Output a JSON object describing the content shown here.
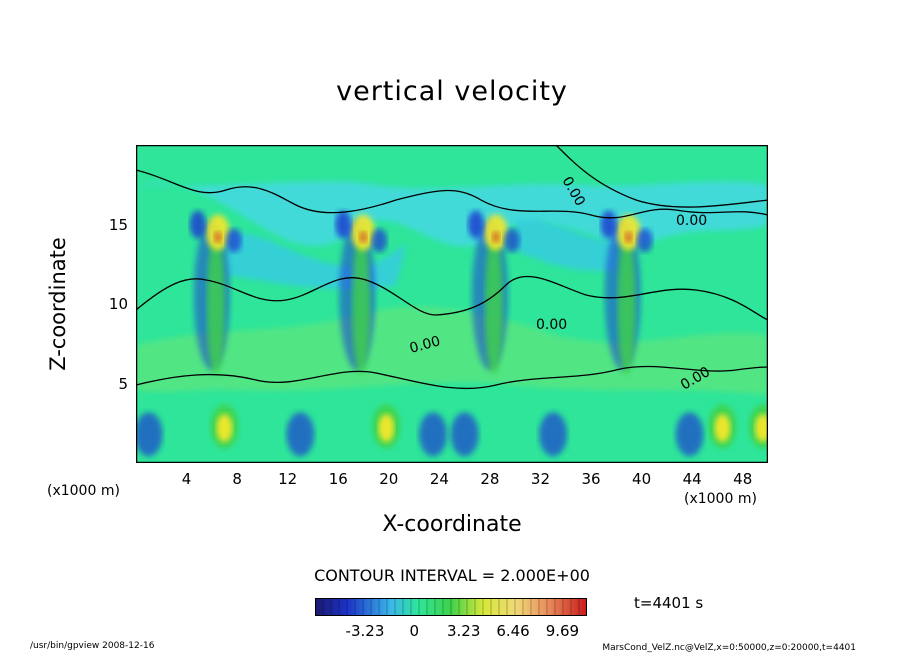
{
  "chart_data": {
    "type": "heatmap",
    "title": "vertical velocity",
    "xlabel": "X-coordinate",
    "ylabel": "Z-coordinate",
    "x_unit": "(x1000 m)",
    "z_unit": "(x1000 m)",
    "xlim": [
      0,
      50
    ],
    "ylim": [
      0,
      20
    ],
    "x_ticks": [
      "4",
      "8",
      "12",
      "16",
      "20",
      "24",
      "28",
      "32",
      "36",
      "40",
      "44",
      "48"
    ],
    "y_ticks": [
      "5",
      "10",
      "15"
    ],
    "contour_labels": [
      "0.00",
      "0.00",
      "0.00",
      "0.00",
      "0.00"
    ],
    "contour_interval": "CONTOUR INTERVAL = 2.000E+00",
    "colorbar_ticks": [
      "-3.23",
      "0",
      "3.23",
      "6.46",
      "9.69"
    ],
    "colorbar_range": [
      -6.5,
      11.3
    ],
    "time_label": "t=4401 s",
    "updraft_centers_x": [
      6,
      17.5,
      28,
      38.5
    ],
    "colors": {
      "background_field": "#2ee59a",
      "upper_band": "#39d9e0",
      "updraft": "#f4e82a",
      "downdraft": "#1a3fd0"
    }
  },
  "footer": {
    "left": "/usr/bin/gpview   2008-12-16",
    "right": "MarsCond_VelZ.nc@VelZ,x=0:50000,z=0:20000,t=4401"
  }
}
